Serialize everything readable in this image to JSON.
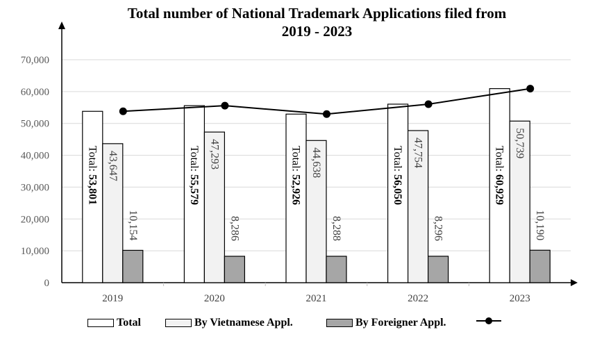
{
  "chart_data": {
    "type": "bar",
    "title_lines": [
      "Total number of National Trademark Applications filed from",
      "2019 - 2023"
    ],
    "categories": [
      "2019",
      "2020",
      "2021",
      "2022",
      "2023"
    ],
    "series": [
      {
        "name": "Total",
        "values": [
          53801,
          55579,
          52926,
          56050,
          60929
        ],
        "color": "#ffffff",
        "labels": [
          "Total: 53,801",
          "Total: 55,579",
          "Total: 52,926",
          "Total: 56,050",
          "Total: 60,929"
        ]
      },
      {
        "name": "By Vietnamese Appl.",
        "values": [
          43647,
          47293,
          44638,
          47754,
          50739
        ],
        "color": "#f2f2f2",
        "labels": [
          "43,647",
          "47,293",
          "44,638",
          "47,754",
          "50,739"
        ]
      },
      {
        "name": "By Foreigner Appl.",
        "values": [
          10154,
          8286,
          8288,
          8296,
          10190
        ],
        "color": "#a6a6a6",
        "labels": [
          "10,154",
          "8,286",
          "8,288",
          "8,296",
          "10,190"
        ]
      }
    ],
    "line_series": {
      "name": "",
      "values": [
        53801,
        55579,
        52926,
        56050,
        60929
      ],
      "color": "#000000"
    },
    "yticks": [
      "0",
      "10,000",
      "20,000",
      "30,000",
      "40,000",
      "50,000",
      "60,000",
      "70,000"
    ],
    "ylim": [
      0,
      70000
    ],
    "grid": true,
    "legend_position": "bottom"
  }
}
